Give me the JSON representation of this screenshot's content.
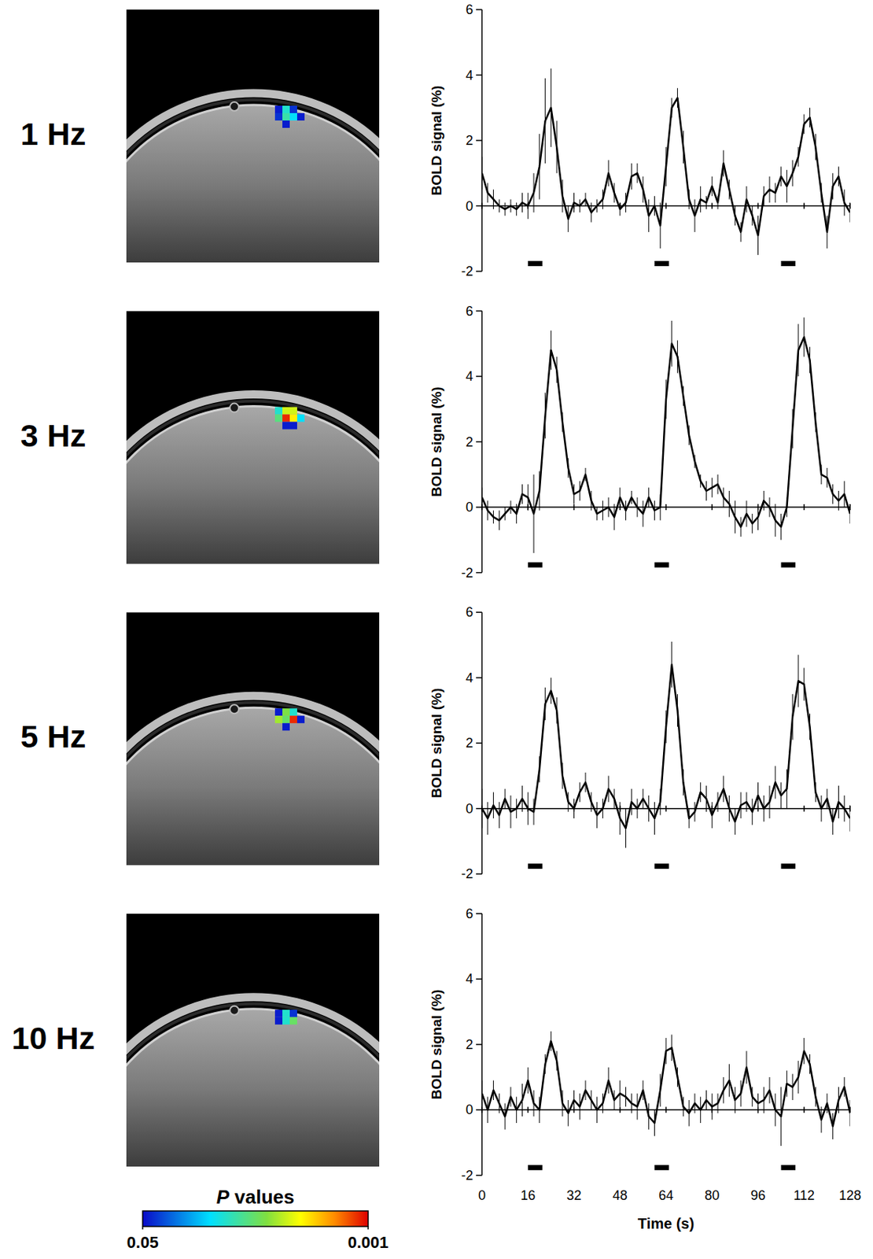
{
  "chart_data": [
    {
      "type": "line",
      "title": "1 Hz",
      "y_label": "BOLD signal (%)",
      "tick_labels": "y",
      "xlim": [
        0,
        128
      ],
      "ylim": [
        -2,
        6
      ],
      "xticks": [
        0,
        16,
        32,
        48,
        64,
        80,
        96,
        112,
        128
      ],
      "yticks": [
        -2,
        0,
        2,
        4,
        6
      ],
      "x": [
        0,
        2,
        4,
        6,
        8,
        10,
        12,
        14,
        16,
        18,
        20,
        22,
        24,
        26,
        28,
        30,
        32,
        34,
        36,
        38,
        40,
        42,
        44,
        46,
        48,
        50,
        52,
        54,
        56,
        58,
        60,
        62,
        64,
        66,
        68,
        70,
        72,
        74,
        76,
        78,
        80,
        82,
        84,
        86,
        88,
        90,
        92,
        94,
        96,
        98,
        100,
        102,
        104,
        106,
        108,
        110,
        112,
        114,
        116,
        118,
        120,
        122,
        124,
        126,
        128
      ],
      "values": [
        1.0,
        0.4,
        0.2,
        0.0,
        -0.1,
        0.0,
        -0.1,
        0.1,
        0.0,
        0.4,
        1.2,
        2.6,
        3.0,
        1.8,
        0.3,
        -0.4,
        0.1,
        0.0,
        0.2,
        -0.2,
        0.0,
        0.2,
        1.0,
        0.4,
        -0.1,
        0.1,
        0.9,
        1.0,
        0.5,
        -0.3,
        0.0,
        -0.6,
        1.2,
        3.0,
        3.3,
        1.8,
        0.2,
        -0.3,
        0.2,
        0.1,
        0.6,
        0.1,
        1.3,
        0.5,
        -0.3,
        -0.8,
        0.2,
        -0.3,
        -0.9,
        0.3,
        0.5,
        0.4,
        0.9,
        0.6,
        1.0,
        1.5,
        2.5,
        2.7,
        1.8,
        0.4,
        -0.8,
        0.6,
        0.9,
        0.1,
        -0.2
      ],
      "errors": [
        0.5,
        0.3,
        0.3,
        0.2,
        0.2,
        0.2,
        0.2,
        0.3,
        0.4,
        0.6,
        1.0,
        1.3,
        1.2,
        0.8,
        0.5,
        0.4,
        0.3,
        0.2,
        0.2,
        0.3,
        0.2,
        0.3,
        0.4,
        0.3,
        0.2,
        0.3,
        0.4,
        0.3,
        0.4,
        0.5,
        0.3,
        0.7,
        0.6,
        0.3,
        0.3,
        0.5,
        0.3,
        0.5,
        0.4,
        0.2,
        0.3,
        0.2,
        0.4,
        0.3,
        0.3,
        0.3,
        0.4,
        0.3,
        0.6,
        0.3,
        0.4,
        0.3,
        0.3,
        0.5,
        0.4,
        0.3,
        0.3,
        0.3,
        0.4,
        0.3,
        0.5,
        0.4,
        0.3,
        0.4,
        0.3
      ],
      "stimuli": [
        [
          16,
          21
        ],
        [
          60,
          65
        ],
        [
          104,
          109
        ]
      ],
      "voxels": [
        [
          0.045,
          0.012,
          0.04,
          null,
          null
        ],
        [
          0.04,
          0.01,
          0.015,
          0.045,
          null
        ],
        [
          null,
          0.045,
          null,
          null,
          null
        ]
      ]
    },
    {
      "type": "line",
      "title": "3 Hz",
      "y_label": "BOLD signal (%)",
      "tick_labels": "y",
      "xlim": [
        0,
        128
      ],
      "ylim": [
        -2,
        6
      ],
      "xticks": [
        0,
        16,
        32,
        48,
        64,
        80,
        96,
        112,
        128
      ],
      "yticks": [
        -2,
        0,
        2,
        4,
        6
      ],
      "x": [
        0,
        2,
        4,
        6,
        8,
        10,
        12,
        14,
        16,
        18,
        20,
        22,
        24,
        26,
        28,
        30,
        32,
        34,
        36,
        38,
        40,
        42,
        44,
        46,
        48,
        50,
        52,
        54,
        56,
        58,
        60,
        62,
        64,
        66,
        68,
        70,
        72,
        74,
        76,
        78,
        80,
        82,
        84,
        86,
        88,
        90,
        92,
        94,
        96,
        98,
        100,
        102,
        104,
        106,
        108,
        110,
        112,
        114,
        116,
        118,
        120,
        122,
        124,
        126,
        128
      ],
      "values": [
        0.3,
        -0.1,
        -0.3,
        -0.4,
        -0.2,
        0.0,
        -0.2,
        0.4,
        0.3,
        -0.2,
        0.5,
        2.8,
        4.8,
        4.2,
        2.6,
        1.2,
        0.4,
        0.5,
        1.0,
        0.2,
        -0.2,
        -0.1,
        0.0,
        -0.3,
        0.3,
        -0.1,
        0.3,
        0.0,
        -0.2,
        0.3,
        -0.1,
        0.0,
        3.3,
        5.0,
        4.6,
        3.4,
        2.2,
        1.4,
        0.8,
        0.5,
        0.6,
        0.7,
        0.3,
        0.1,
        -0.3,
        -0.6,
        -0.2,
        -0.5,
        -0.3,
        0.2,
        0.0,
        -0.4,
        -0.6,
        0.0,
        2.4,
        4.8,
        5.2,
        4.5,
        2.6,
        1.0,
        0.9,
        0.4,
        0.2,
        0.4,
        -0.2
      ],
      "errors": [
        0.3,
        0.3,
        0.2,
        0.3,
        0.2,
        0.2,
        0.3,
        0.3,
        0.4,
        1.2,
        0.6,
        0.7,
        0.6,
        0.4,
        0.3,
        0.3,
        0.3,
        0.3,
        0.2,
        0.3,
        0.2,
        0.3,
        0.3,
        0.4,
        0.3,
        0.3,
        0.2,
        0.3,
        0.4,
        0.3,
        0.3,
        0.4,
        0.6,
        0.7,
        0.5,
        0.3,
        0.3,
        0.2,
        0.2,
        0.3,
        0.3,
        0.3,
        0.3,
        0.4,
        0.5,
        0.3,
        0.4,
        0.3,
        0.4,
        0.3,
        0.3,
        0.5,
        0.4,
        0.3,
        0.6,
        0.8,
        0.6,
        0.4,
        0.3,
        0.3,
        0.3,
        0.3,
        0.3,
        0.4,
        0.3
      ],
      "stimuli": [
        [
          16,
          21
        ],
        [
          60,
          65
        ],
        [
          104,
          109
        ]
      ],
      "voxels": [
        [
          0.012,
          0.004,
          0.004,
          null,
          null
        ],
        [
          0.008,
          0.0012,
          0.003,
          0.015,
          null
        ],
        [
          null,
          0.045,
          0.045,
          null,
          null
        ]
      ]
    },
    {
      "type": "line",
      "title": "5 Hz",
      "y_label": "BOLD signal (%)",
      "tick_labels": "y",
      "xlim": [
        0,
        128
      ],
      "ylim": [
        -2,
        6
      ],
      "xticks": [
        0,
        16,
        32,
        48,
        64,
        80,
        96,
        112,
        128
      ],
      "yticks": [
        -2,
        0,
        2,
        4,
        6
      ],
      "x": [
        0,
        2,
        4,
        6,
        8,
        10,
        12,
        14,
        16,
        18,
        20,
        22,
        24,
        26,
        28,
        30,
        32,
        34,
        36,
        38,
        40,
        42,
        44,
        46,
        48,
        50,
        52,
        54,
        56,
        58,
        60,
        62,
        64,
        66,
        68,
        70,
        72,
        74,
        76,
        78,
        80,
        82,
        84,
        86,
        88,
        90,
        92,
        94,
        96,
        98,
        100,
        102,
        104,
        106,
        108,
        110,
        112,
        114,
        116,
        118,
        120,
        122,
        124,
        126,
        128
      ],
      "values": [
        0.0,
        -0.3,
        0.1,
        -0.2,
        0.3,
        -0.1,
        0.0,
        0.3,
        0.0,
        -0.1,
        1.2,
        3.2,
        3.6,
        3.0,
        1.0,
        0.2,
        0.0,
        0.5,
        0.8,
        0.2,
        -0.2,
        0.0,
        0.6,
        0.3,
        -0.3,
        -0.6,
        0.2,
        0.0,
        0.3,
        0.0,
        -0.3,
        0.2,
        2.5,
        4.4,
        3.0,
        0.8,
        -0.3,
        -0.1,
        0.5,
        0.3,
        -0.2,
        0.2,
        0.6,
        0.0,
        -0.4,
        0.1,
        0.2,
        -0.1,
        0.4,
        0.0,
        0.2,
        0.8,
        0.4,
        0.6,
        2.8,
        3.9,
        3.8,
        2.5,
        0.5,
        0.0,
        0.3,
        -0.4,
        0.2,
        0.0,
        -0.3
      ],
      "errors": [
        0.6,
        0.5,
        0.4,
        0.4,
        0.3,
        0.5,
        0.3,
        0.4,
        0.5,
        0.4,
        0.4,
        0.5,
        0.4,
        0.4,
        0.4,
        0.3,
        0.3,
        0.3,
        0.3,
        0.3,
        0.4,
        0.3,
        0.4,
        0.3,
        0.5,
        0.6,
        0.4,
        0.3,
        0.3,
        0.4,
        0.5,
        0.4,
        0.5,
        0.7,
        0.5,
        0.4,
        0.3,
        0.3,
        0.3,
        0.4,
        0.4,
        0.3,
        0.4,
        0.4,
        0.4,
        0.4,
        0.3,
        0.4,
        0.4,
        0.4,
        0.5,
        0.5,
        0.4,
        0.6,
        0.7,
        0.8,
        0.5,
        0.4,
        0.3,
        0.4,
        0.3,
        0.4,
        0.5,
        0.4,
        0.4
      ],
      "stimuli": [
        [
          16,
          21
        ],
        [
          60,
          65
        ],
        [
          104,
          109
        ]
      ],
      "voxels": [
        [
          0.045,
          0.006,
          0.012,
          null,
          null
        ],
        [
          0.005,
          0.007,
          0.0012,
          0.045,
          null
        ],
        [
          null,
          0.045,
          null,
          null,
          null
        ]
      ]
    },
    {
      "type": "line",
      "title": "10 Hz",
      "y_label": "BOLD signal (%)",
      "x_label": "Time (s)",
      "xlim": [
        0,
        128
      ],
      "ylim": [
        -2,
        6
      ],
      "xticks": [
        0,
        16,
        32,
        48,
        64,
        80,
        96,
        112,
        128
      ],
      "yticks": [
        -2,
        0,
        2,
        4,
        6
      ],
      "x": [
        0,
        2,
        4,
        6,
        8,
        10,
        12,
        14,
        16,
        18,
        20,
        22,
        24,
        26,
        28,
        30,
        32,
        34,
        36,
        38,
        40,
        42,
        44,
        46,
        48,
        50,
        52,
        54,
        56,
        58,
        60,
        62,
        64,
        66,
        68,
        70,
        72,
        74,
        76,
        78,
        80,
        82,
        84,
        86,
        88,
        90,
        92,
        94,
        96,
        98,
        100,
        102,
        104,
        106,
        108,
        110,
        112,
        114,
        116,
        118,
        120,
        122,
        124,
        126,
        128
      ],
      "values": [
        0.5,
        0.0,
        0.6,
        0.2,
        -0.2,
        0.4,
        0.0,
        0.3,
        0.9,
        0.2,
        0.0,
        1.4,
        2.1,
        1.5,
        0.2,
        -0.1,
        0.3,
        0.1,
        0.6,
        0.3,
        0.0,
        0.2,
        0.9,
        0.3,
        0.5,
        0.4,
        0.2,
        0.1,
        0.6,
        -0.2,
        -0.4,
        0.6,
        1.8,
        1.9,
        1.0,
        0.1,
        -0.1,
        0.2,
        0.0,
        0.3,
        0.1,
        0.2,
        0.6,
        0.9,
        0.3,
        0.5,
        1.3,
        0.4,
        0.2,
        0.3,
        0.6,
        0.0,
        -0.2,
        0.8,
        0.7,
        1.0,
        1.8,
        1.4,
        0.4,
        -0.3,
        0.2,
        -0.5,
        0.3,
        0.7,
        -0.1
      ],
      "errors": [
        0.4,
        0.4,
        0.3,
        0.3,
        0.4,
        0.3,
        0.4,
        0.5,
        0.4,
        0.4,
        0.4,
        0.3,
        0.3,
        0.3,
        0.4,
        0.4,
        0.3,
        0.4,
        0.3,
        0.3,
        0.4,
        0.3,
        0.4,
        0.3,
        0.4,
        0.3,
        0.3,
        0.4,
        0.3,
        0.4,
        0.4,
        0.5,
        0.4,
        0.4,
        0.3,
        0.3,
        0.4,
        0.3,
        0.4,
        0.3,
        0.4,
        0.3,
        0.4,
        0.5,
        0.4,
        0.4,
        0.5,
        0.3,
        0.3,
        0.4,
        0.4,
        0.5,
        0.9,
        0.4,
        0.4,
        0.5,
        0.4,
        0.3,
        0.3,
        0.4,
        0.3,
        0.4,
        0.4,
        0.3,
        0.4
      ],
      "stimuli": [
        [
          16,
          21
        ],
        [
          60,
          65
        ],
        [
          104,
          109
        ]
      ],
      "voxels": [
        [
          0.045,
          0.012,
          0.04,
          null,
          null
        ],
        [
          0.045,
          0.012,
          0.007,
          null,
          null
        ],
        [
          null,
          null,
          null,
          null,
          null
        ]
      ]
    }
  ],
  "color_bar": {
    "label": "P values",
    "range": [
      0.05,
      0.001
    ],
    "ticks": [
      0.05,
      0.001
    ]
  }
}
